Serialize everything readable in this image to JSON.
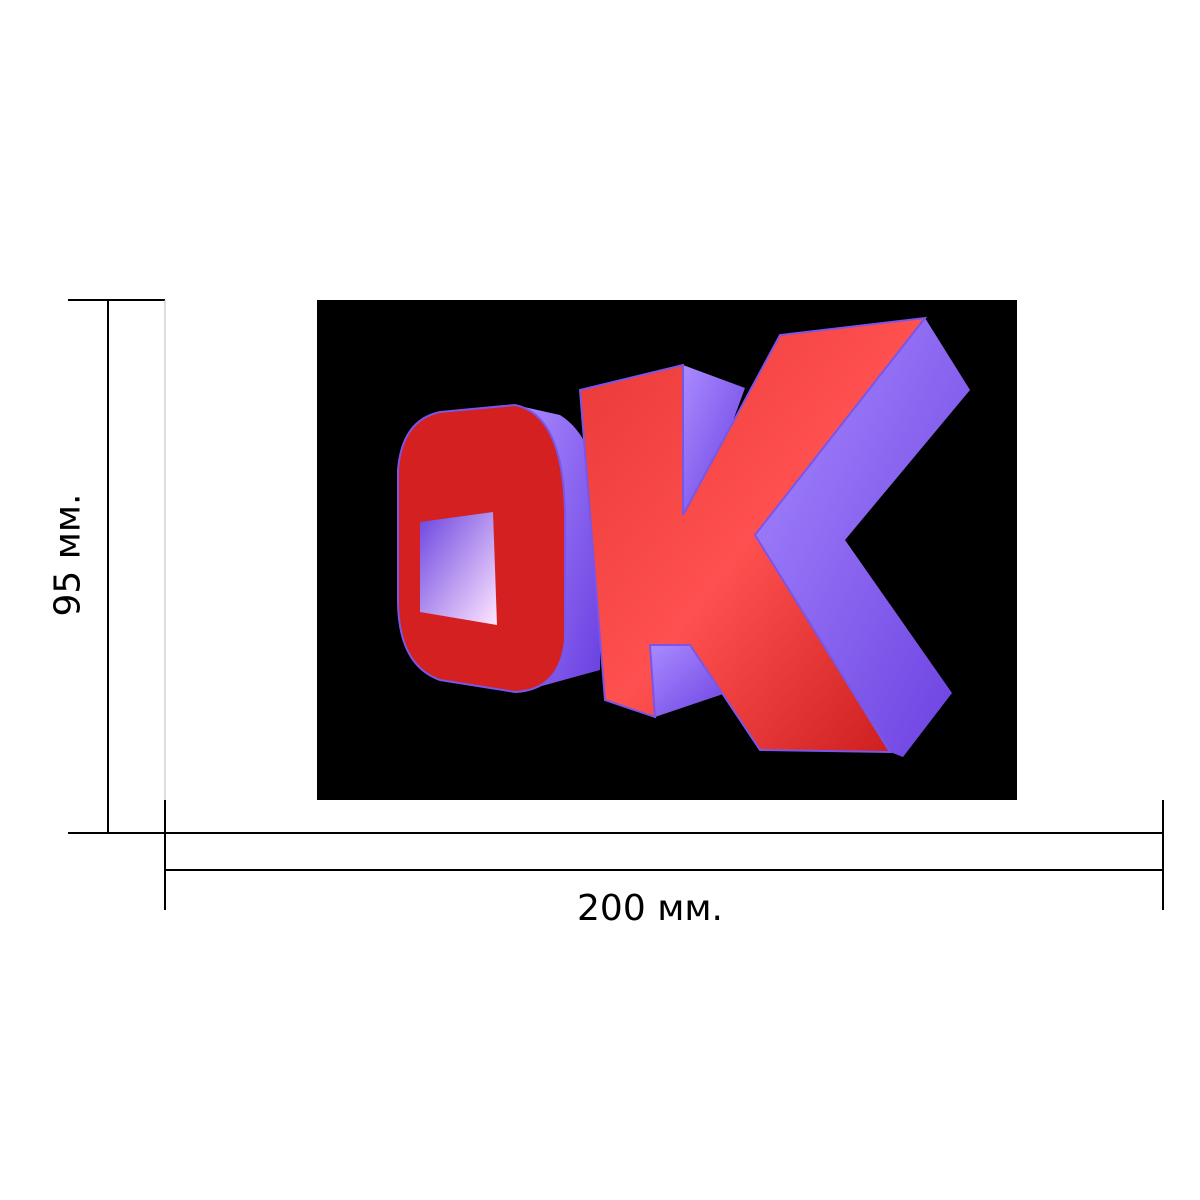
{
  "dimensions": {
    "width_label": "200 мм.",
    "height_label": "95 мм."
  },
  "sign": {
    "lettering": "OK",
    "background_color": "#000000",
    "face_color": "#d42020",
    "side_color": "#7b55e8"
  }
}
